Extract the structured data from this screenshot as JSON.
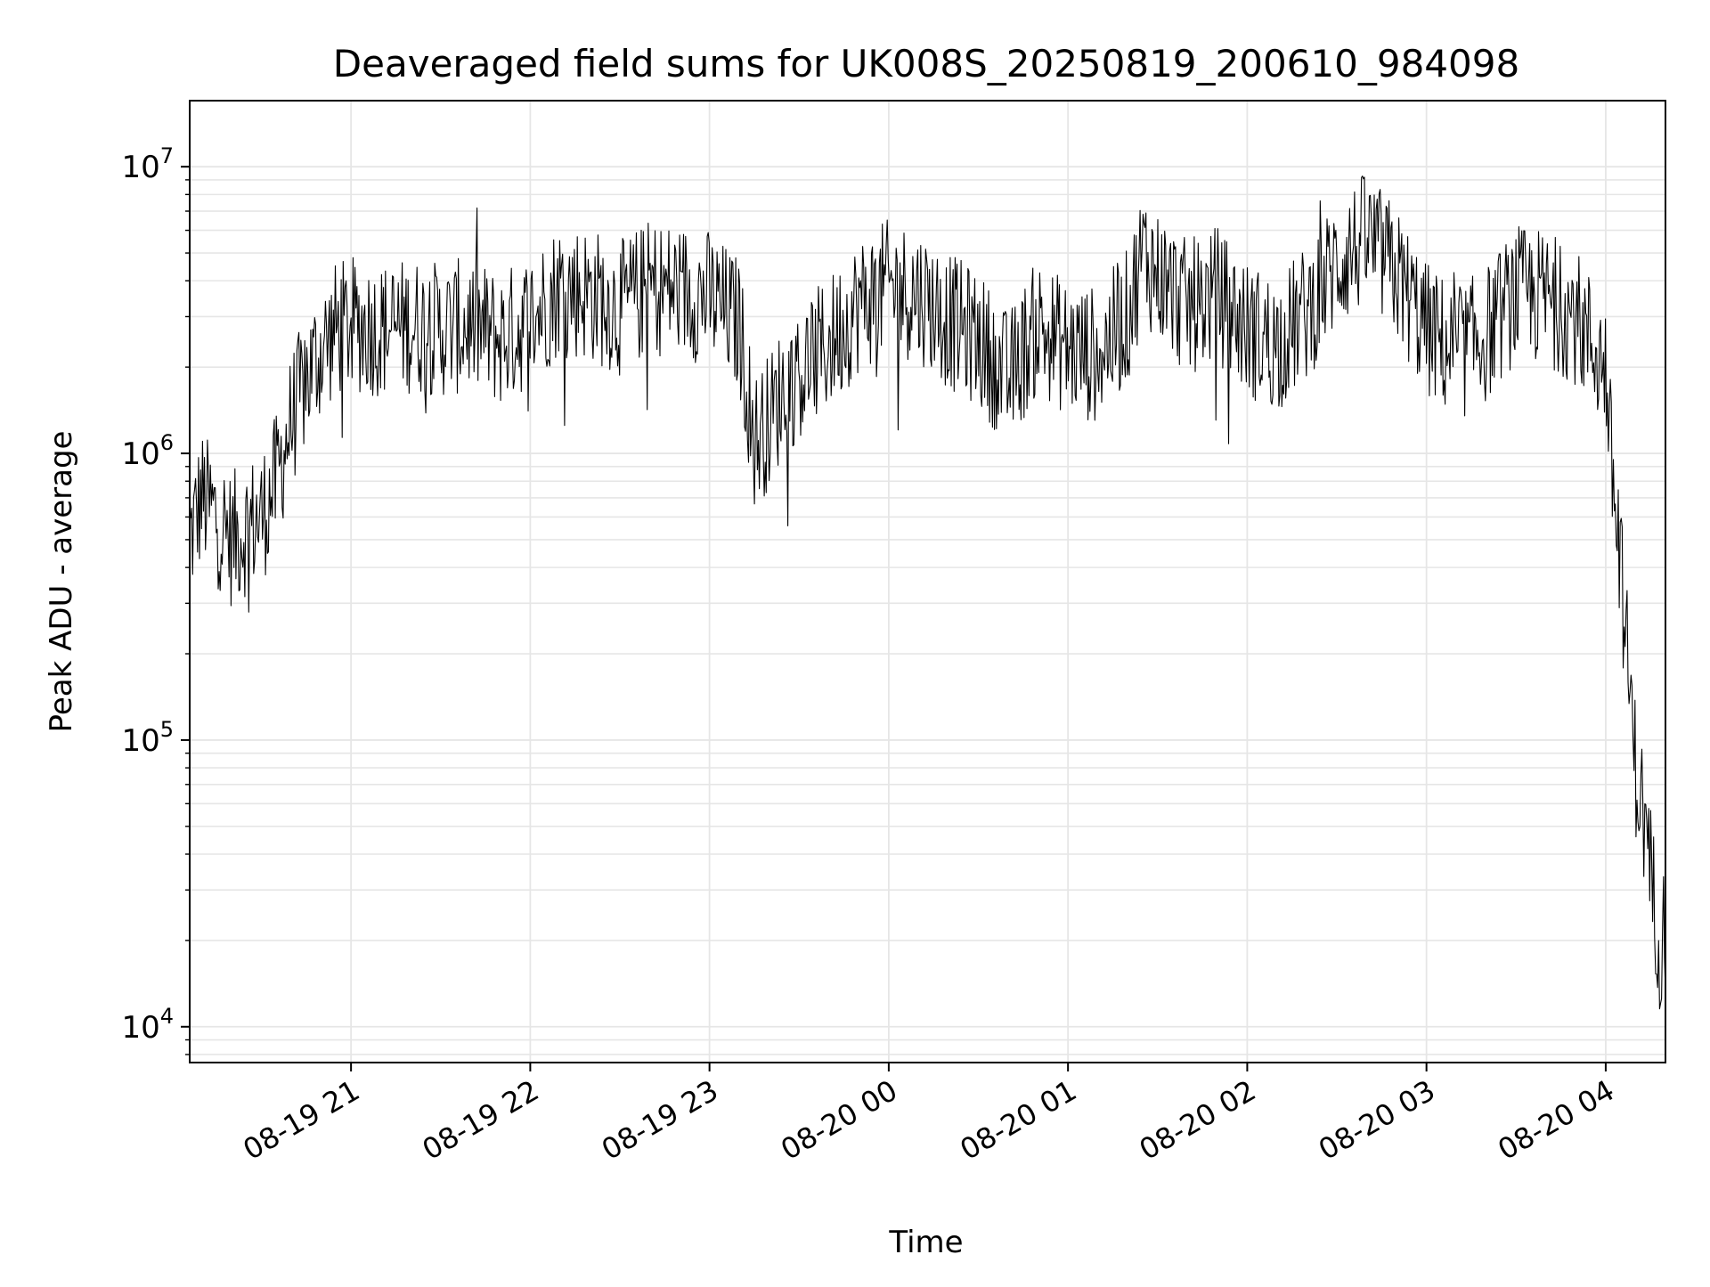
{
  "chart_data": {
    "type": "line",
    "title": "Deaveraged field sums for UK008S_20250819_200610_984098",
    "xlabel": "Time",
    "ylabel": "Peak ADU - average",
    "y_scale": "log",
    "ylim": [
      7500,
      17000000
    ],
    "xlim": [
      "2025-08-19 20:06",
      "2025-08-20 04:20"
    ],
    "grid": true,
    "line_color": "#000000",
    "grid_color": "#e6e6e6",
    "x_ticks": [
      {
        "value": "2025-08-19 21:00",
        "label": "08-19 21"
      },
      {
        "value": "2025-08-19 22:00",
        "label": "08-19 22"
      },
      {
        "value": "2025-08-19 23:00",
        "label": "08-19 23"
      },
      {
        "value": "2025-08-20 00:00",
        "label": "08-20 00"
      },
      {
        "value": "2025-08-20 01:00",
        "label": "08-20 01"
      },
      {
        "value": "2025-08-20 02:00",
        "label": "08-20 02"
      },
      {
        "value": "2025-08-20 03:00",
        "label": "08-20 03"
      },
      {
        "value": "2025-08-20 04:00",
        "label": "08-20 04"
      }
    ],
    "y_ticks": [
      {
        "value": 10000,
        "base": "10",
        "exp": "4"
      },
      {
        "value": 100000,
        "base": "10",
        "exp": "5"
      },
      {
        "value": 1000000,
        "base": "10",
        "exp": "6"
      },
      {
        "value": 10000000,
        "base": "10",
        "exp": "7"
      }
    ],
    "series": [
      {
        "x": [
          "2025-08-19 20:06",
          "2025-08-19 20:10",
          "2025-08-19 20:15",
          "2025-08-19 20:20",
          "2025-08-19 20:25",
          "2025-08-19 20:30",
          "2025-08-19 20:35",
          "2025-08-19 20:40",
          "2025-08-19 20:45",
          "2025-08-19 20:50",
          "2025-08-19 20:55",
          "2025-08-19 21:00",
          "2025-08-19 21:10",
          "2025-08-19 21:20",
          "2025-08-19 21:30",
          "2025-08-19 21:40",
          "2025-08-19 21:50",
          "2025-08-19 22:00",
          "2025-08-19 22:10",
          "2025-08-19 22:20",
          "2025-08-19 22:30",
          "2025-08-19 22:40",
          "2025-08-19 22:50",
          "2025-08-19 23:00",
          "2025-08-19 23:10",
          "2025-08-19 23:15",
          "2025-08-19 23:20",
          "2025-08-19 23:25",
          "2025-08-19 23:30",
          "2025-08-19 23:40",
          "2025-08-19 23:50",
          "2025-08-20 00:00",
          "2025-08-20 00:10",
          "2025-08-20 00:20",
          "2025-08-20 00:30",
          "2025-08-20 00:40",
          "2025-08-20 00:50",
          "2025-08-20 01:00",
          "2025-08-20 01:10",
          "2025-08-20 01:20",
          "2025-08-20 01:25",
          "2025-08-20 01:30",
          "2025-08-20 01:40",
          "2025-08-20 01:50",
          "2025-08-20 02:00",
          "2025-08-20 02:10",
          "2025-08-20 02:20",
          "2025-08-20 02:30",
          "2025-08-20 02:40",
          "2025-08-20 02:50",
          "2025-08-20 03:00",
          "2025-08-20 03:10",
          "2025-08-20 03:20",
          "2025-08-20 03:30",
          "2025-08-20 03:40",
          "2025-08-20 03:50",
          "2025-08-20 04:00",
          "2025-08-20 04:02",
          "2025-08-20 04:05",
          "2025-08-20 04:08",
          "2025-08-20 04:10",
          "2025-08-20 04:12",
          "2025-08-20 04:15",
          "2025-08-20 04:18",
          "2025-08-20 04:20"
        ],
        "y": [
          500000,
          700000,
          600000,
          500000,
          550000,
          600000,
          800000,
          1300000,
          1800000,
          2300000,
          2700000,
          2800000,
          2700000,
          2800000,
          2700000,
          2800000,
          2500000,
          2900000,
          3800000,
          3600000,
          3200000,
          3800000,
          3700000,
          3500000,
          2800000,
          1100000,
          1300000,
          1700000,
          1900000,
          2400000,
          3300000,
          3800000,
          3600000,
          2900000,
          2500000,
          1800000,
          2800000,
          2300000,
          2200000,
          3000000,
          5000000,
          4200000,
          3200000,
          3600000,
          2700000,
          2400000,
          3100000,
          4600000,
          5600000,
          4200000,
          2700000,
          2200000,
          2600000,
          3600000,
          3500000,
          3000000,
          2000000,
          900000,
          400000,
          150000,
          80000,
          60000,
          35000,
          20000,
          22000
        ]
      }
    ]
  }
}
